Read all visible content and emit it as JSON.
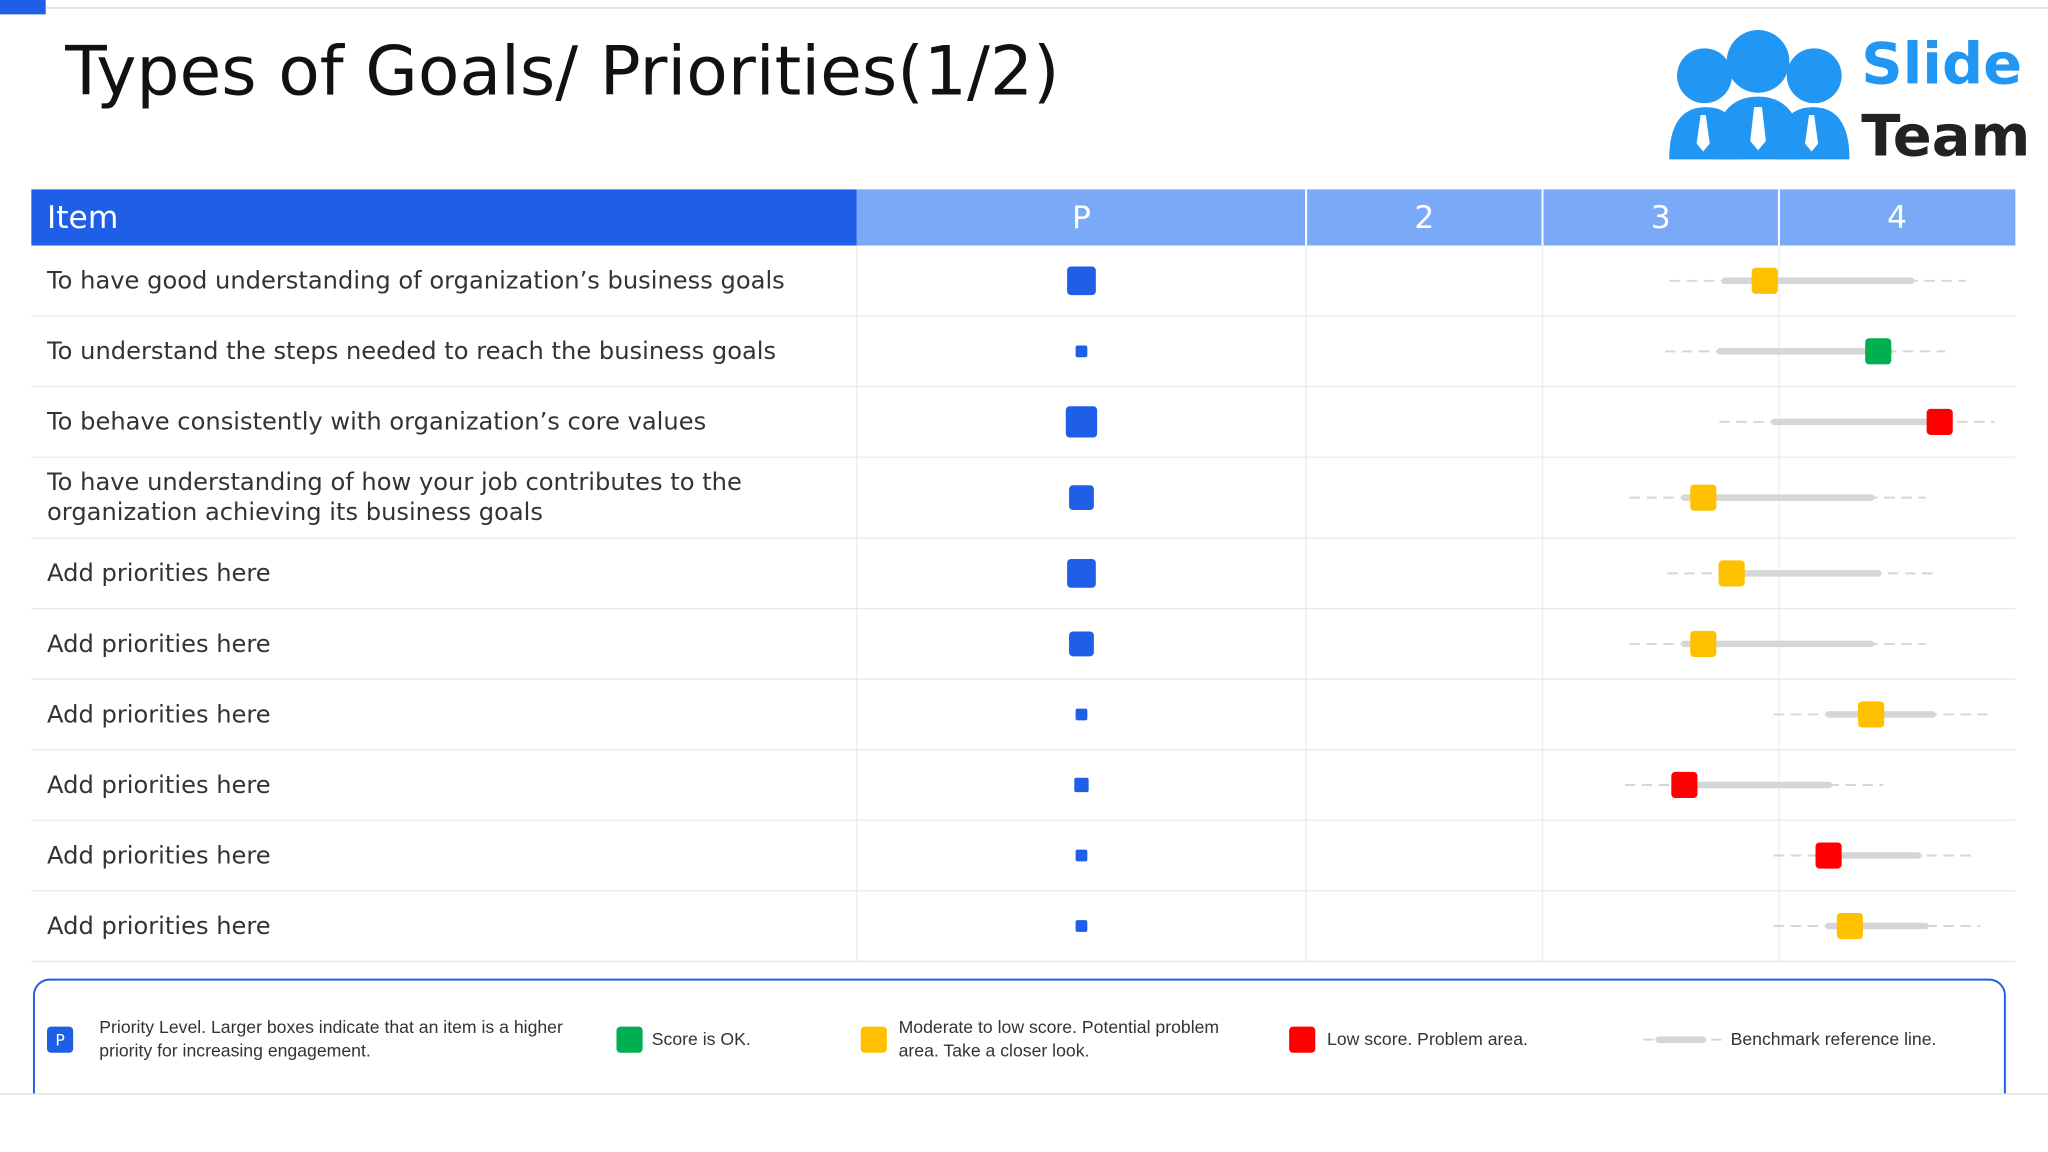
{
  "header": {
    "title": "Types of Goals/ Priorities(1/2)",
    "logo": [
      "Slide",
      "Team"
    ]
  },
  "colors": {
    "priority": "#1f5fe8",
    "ok": "#00b050",
    "moderate": "#ffc000",
    "low": "#ff0000",
    "benchmark": "#d6d6d6"
  },
  "table": {
    "columns": [
      "Item",
      "P",
      2,
      3,
      4
    ],
    "rows": [
      {
        "item": "To have good understanding of organization’s business goals",
        "priority": 22,
        "score": 3.44,
        "status": "moderate",
        "benchmark": [
          3.27,
          4.06
        ]
      },
      {
        "item": "To understand the steps needed to reach the business goals",
        "priority": 9,
        "score": 3.92,
        "status": "ok",
        "benchmark": [
          3.25,
          3.97
        ]
      },
      {
        "item": "To behave consistently with organization’s core values",
        "priority": 24,
        "score": 4.18,
        "status": "low",
        "benchmark": [
          3.48,
          4.18
        ]
      },
      {
        "item": "To have understanding of how your job contributes to the organization achieving its business goals",
        "priority": 19,
        "score": 3.18,
        "status": "moderate",
        "benchmark": [
          3.1,
          3.89
        ]
      },
      {
        "item": "Add priorities here",
        "priority": 22,
        "score": 3.3,
        "status": "moderate",
        "benchmark": [
          3.26,
          3.92
        ]
      },
      {
        "item": "Add priorities here",
        "priority": 19,
        "score": 3.18,
        "status": "moderate",
        "benchmark": [
          3.1,
          3.89
        ]
      },
      {
        "item": "Add priorities here",
        "priority": 9,
        "score": 3.89,
        "status": "moderate",
        "benchmark": [
          3.71,
          4.15
        ]
      },
      {
        "item": "Add priorities here",
        "priority": 11,
        "score": 3.1,
        "status": "low",
        "benchmark": [
          3.08,
          3.71
        ]
      },
      {
        "item": "Add priorities here",
        "priority": 9,
        "score": 3.71,
        "status": "low",
        "benchmark": [
          3.71,
          4.09
        ]
      },
      {
        "item": "Add priorities here",
        "priority": 9,
        "score": 3.8,
        "status": "moderate",
        "benchmark": [
          3.71,
          4.12
        ]
      }
    ]
  },
  "legend": [
    {
      "swatch": "P",
      "kind": "priority",
      "text": "Priority Level. Larger boxes indicate that an item is a higher priority for increasing engagement."
    },
    {
      "kind": "ok",
      "text": "Score is OK."
    },
    {
      "kind": "moderate",
      "text": "Moderate to low score. Potential problem area. Take a closer look."
    },
    {
      "kind": "low",
      "text": "Low score. Problem area."
    },
    {
      "kind": "benchmark",
      "text": "Benchmark reference line."
    }
  ]
}
